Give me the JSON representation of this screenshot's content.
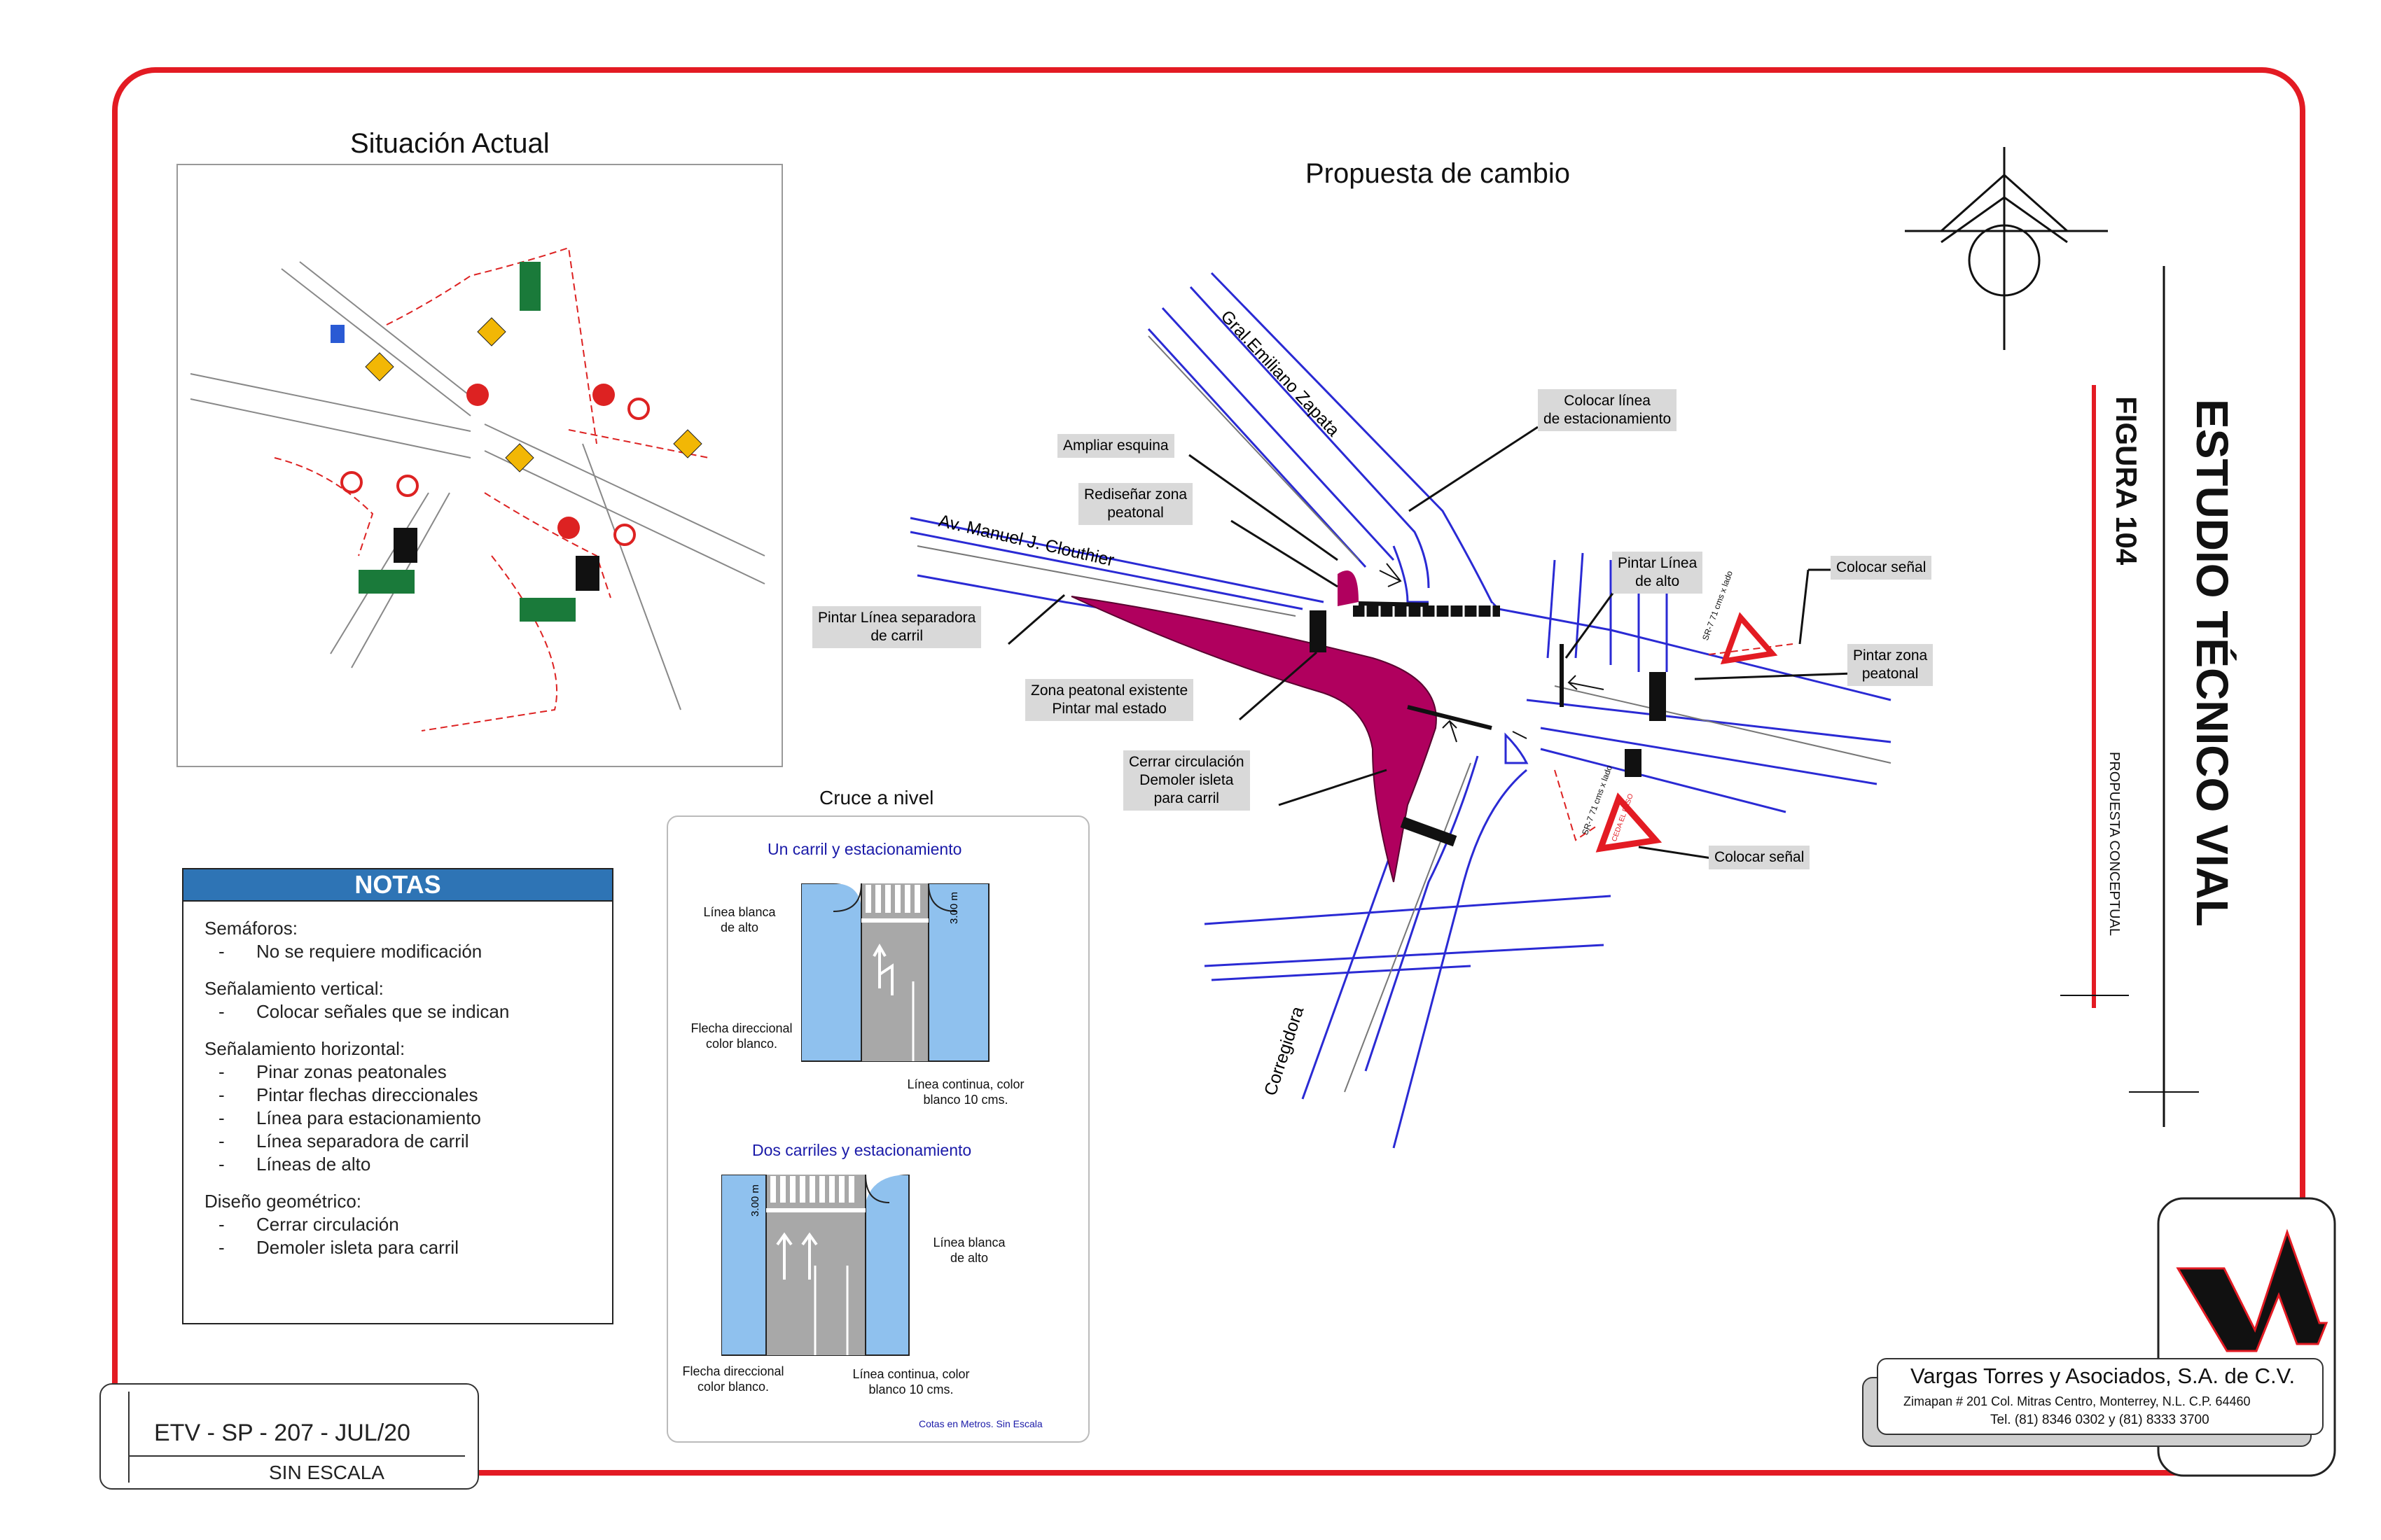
{
  "titles": {
    "situacion_actual": "Situación Actual",
    "propuesta": "Propuesta de cambio",
    "cruce": "Cruce a nivel"
  },
  "street_names": {
    "zapata": "Gral.Emiliano Zapata",
    "clouthier": "Av. Manuel J. Clouthier",
    "corregidora": "Corregidora"
  },
  "callouts": {
    "ampliar_esquina": "Ampliar esquina",
    "redisenar_1": "Rediseñar zona",
    "redisenar_2": "peatonal",
    "linea_sep_1": "Pintar Línea separadora",
    "linea_sep_2": "de carril",
    "zona_exist_1": "Zona peatonal existente",
    "zona_exist_2": "Pintar mal estado",
    "cerrar_1": "Cerrar  circulación",
    "cerrar_2": "Demoler isleta",
    "cerrar_3": "para carril",
    "colocar_linea_1": "Colocar línea",
    "colocar_linea_2": "de estacionamiento",
    "pintar_alto_1": "Pintar Línea",
    "pintar_alto_2": "de alto",
    "colocar_senal_top": "Colocar señal",
    "pintar_zona_1": "Pintar zona",
    "pintar_zona_2": "peatonal",
    "colocar_senal_bottom": "Colocar señal"
  },
  "signs": {
    "sr7": "SR-7",
    "sr7_size": "71 cms x lado",
    "ceda": "CEDA EL PASO"
  },
  "notes": {
    "header": "NOTAS",
    "semaforos": "Semáforos:",
    "semaforos_items": [
      "No se requiere modificación"
    ],
    "vertical": "Señalamiento vertical:",
    "vertical_items": [
      "Colocar señales que se indican"
    ],
    "horizontal": "Señalamiento horizontal:",
    "horizontal_items": [
      "Pinar zonas peatonales",
      "Pintar flechas direccionales",
      "Línea para estacionamiento",
      "Línea separadora de carril",
      "Líneas de alto"
    ],
    "geometrico": "Diseño geométrico:",
    "geometrico_items": [
      "Cerrar circulación",
      "Demoler isleta para carril"
    ],
    "dash": "-"
  },
  "cruce": {
    "one_title": "Un carril y estacionamiento",
    "one_stop_1": "Línea blanca",
    "one_stop_2": "de alto",
    "one_dim": "3.00 m",
    "one_arrow_1": "Flecha direccional",
    "one_arrow_2": "color blanco.",
    "one_line_1": "Línea continua, color",
    "one_line_2": "blanco 10 cms.",
    "two_title": "Dos carriles y estacionamiento",
    "two_dim": "3.00 m",
    "two_stop_1": "Línea blanca",
    "two_stop_2": "de alto",
    "two_arrow_1": "Flecha direccional",
    "two_arrow_2": "color blanco.",
    "two_line_1": "Línea continua, color",
    "two_line_2": "blanco 10 cms.",
    "footnote": "Cotas en Metros. Sin Escala"
  },
  "title_block": {
    "main": "ESTUDIO TÉCNICO VIAL",
    "figure": "FIGURA 104",
    "subtitle": "PROPUESTA CONCEPTUAL"
  },
  "code": {
    "id": "ETV - SP - 207 - JUL/20",
    "scale": "SIN ESCALA"
  },
  "company": {
    "name": "Vargas Torres y Asociados, S.A. de C.V.",
    "address": "Zimapan # 201 Col. Mitras Centro, Monterrey, N.L. C.P. 64460",
    "phone": "Tel. (81) 8346 0302  y  (81) 8333 3700"
  },
  "colors": {
    "frame": "#e31b23",
    "road": "#2a2ad4",
    "magenta": "#b0005e",
    "notes_header": "#2e74b5",
    "lane_fill": "#8fc1ee"
  }
}
